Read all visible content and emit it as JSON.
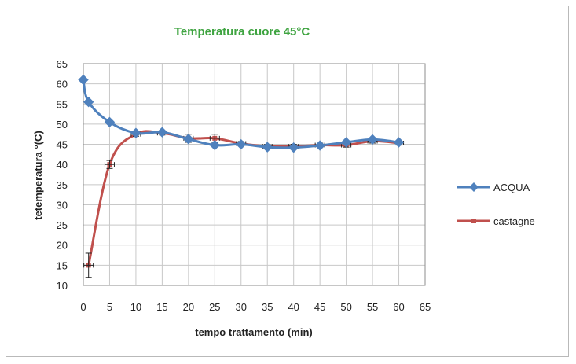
{
  "chart_data": {
    "type": "line",
    "title": "Temperatura cuore 45°C",
    "xlabel": "tempo trattamento (min)",
    "ylabel": "tetemperatura °(C)",
    "xlim": [
      0,
      65
    ],
    "ylim": [
      10,
      65
    ],
    "xticks": [
      "0",
      "5",
      "10",
      "15",
      "20",
      "25",
      "30",
      "35",
      "40",
      "45",
      "50",
      "55",
      "60",
      "65"
    ],
    "yticks": [
      "10",
      "15",
      "20",
      "25",
      "30",
      "35",
      "40",
      "45",
      "50",
      "55",
      "60",
      "65"
    ],
    "grid": true,
    "legend": "right",
    "series": [
      {
        "name": "ACQUA",
        "color": "#4f81bd",
        "marker": "diamond",
        "x": [
          0,
          1,
          5,
          10,
          15,
          20,
          25,
          30,
          35,
          40,
          45,
          50,
          55,
          60
        ],
        "y": [
          61,
          55.5,
          50.5,
          47.8,
          48,
          46.3,
          44.8,
          45,
          44.3,
          44.2,
          44.7,
          45.5,
          46.2,
          45.5
        ]
      },
      {
        "name": "castagne",
        "color": "#c0504d",
        "marker": "small",
        "x": [
          1,
          5,
          10,
          15,
          20,
          25,
          30,
          35,
          40,
          45,
          50,
          55,
          60
        ],
        "y": [
          15,
          40,
          47.5,
          47.8,
          46.5,
          46.5,
          45.2,
          44.5,
          44.5,
          44.8,
          44.8,
          45.8,
          45.3
        ],
        "error": [
          3,
          1,
          0.5,
          0.5,
          1,
          1,
          0.5,
          0.5,
          0.5,
          0.5,
          0.5,
          0.5,
          0.5
        ]
      }
    ]
  }
}
